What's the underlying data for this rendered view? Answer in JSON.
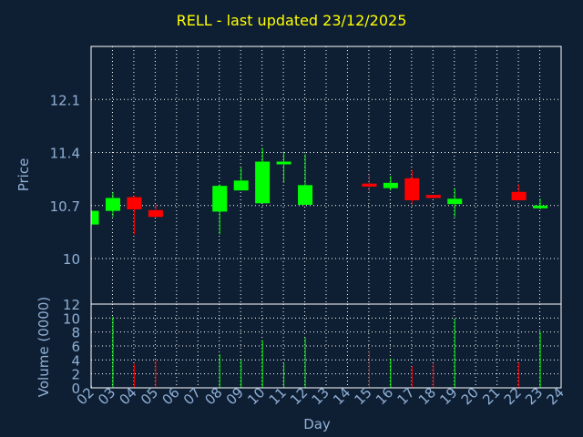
{
  "chart_data": [
    {
      "type": "candlestick",
      "title": "RELL - last updated 23/12/2025",
      "ylabel": "Price",
      "ylim": [
        9.4,
        12.8
      ],
      "yticks": [
        10,
        10.7,
        11.4,
        12.1
      ],
      "ytick_labels": [
        "10",
        "10.7",
        "11.4",
        "12.1"
      ],
      "grid": true,
      "x_range": [
        2,
        24
      ],
      "candles": [
        {
          "day": 2,
          "open": 10.45,
          "close": 10.63,
          "high": 10.63,
          "low": 10.45
        },
        {
          "day": 3,
          "open": 10.63,
          "close": 10.8,
          "high": 10.88,
          "low": 10.55
        },
        {
          "day": 4,
          "open": 10.81,
          "close": 10.65,
          "high": 10.83,
          "low": 10.32
        },
        {
          "day": 5,
          "open": 10.64,
          "close": 10.55,
          "high": 10.72,
          "low": 10.55
        },
        {
          "day": 8,
          "open": 10.62,
          "close": 10.96,
          "high": 10.98,
          "low": 10.32
        },
        {
          "day": 9,
          "open": 10.9,
          "close": 11.03,
          "high": 11.2,
          "low": 10.9
        },
        {
          "day": 10,
          "open": 10.73,
          "close": 11.28,
          "high": 11.46,
          "low": 10.73
        },
        {
          "day": 11,
          "open": 11.26,
          "close": 11.28,
          "high": 11.41,
          "low": 11.0
        },
        {
          "day": 12,
          "open": 10.71,
          "close": 10.97,
          "high": 11.38,
          "low": 10.71
        },
        {
          "day": 15,
          "open": 10.99,
          "close": 10.95,
          "high": 11.11,
          "low": 10.88
        },
        {
          "day": 16,
          "open": 10.93,
          "close": 11.0,
          "high": 11.09,
          "low": 10.9
        },
        {
          "day": 17,
          "open": 11.06,
          "close": 10.77,
          "high": 11.17,
          "low": 10.72
        },
        {
          "day": 18,
          "open": 10.84,
          "close": 10.8,
          "high": 10.84,
          "low": 10.8
        },
        {
          "day": 19,
          "open": 10.72,
          "close": 10.79,
          "high": 10.93,
          "low": 10.55
        },
        {
          "day": 22,
          "open": 10.88,
          "close": 10.77,
          "high": 10.98,
          "low": 10.77
        },
        {
          "day": 23,
          "open": 10.67,
          "close": 10.7,
          "high": 10.79,
          "low": 10.65
        }
      ]
    },
    {
      "type": "bar",
      "ylabel": "Volume (0000)",
      "xlabel": "Day",
      "ylim": [
        0,
        12
      ],
      "yticks": [
        0,
        2,
        4,
        6,
        8,
        10,
        12
      ],
      "ytick_labels": [
        "0",
        "2",
        "4",
        "6",
        "8",
        "10",
        "12"
      ],
      "x_range": [
        2,
        24
      ],
      "xticks": [
        2,
        3,
        4,
        5,
        6,
        7,
        8,
        9,
        10,
        11,
        12,
        13,
        14,
        15,
        16,
        17,
        18,
        19,
        20,
        21,
        22,
        23,
        24
      ],
      "xtick_labels": [
        "02",
        "03",
        "04",
        "05",
        "06",
        "07",
        "08",
        "09",
        "10",
        "11",
        "12",
        "13",
        "14",
        "15",
        "16",
        "17",
        "18",
        "19",
        "20",
        "21",
        "22",
        "23",
        "24"
      ],
      "bars": [
        {
          "day": 2,
          "value": 0.3,
          "color": "#00ff00"
        },
        {
          "day": 3,
          "value": 10.2,
          "color": "#00ff00"
        },
        {
          "day": 4,
          "value": 3.4,
          "color": "#ff0000"
        },
        {
          "day": 5,
          "value": 4.0,
          "color": "#ff0000"
        },
        {
          "day": 8,
          "value": 4.8,
          "color": "#00ff00"
        },
        {
          "day": 9,
          "value": 4.0,
          "color": "#00ff00"
        },
        {
          "day": 10,
          "value": 6.8,
          "color": "#00ff00"
        },
        {
          "day": 11,
          "value": 3.6,
          "color": "#00ff00"
        },
        {
          "day": 12,
          "value": 7.2,
          "color": "#00ff00"
        },
        {
          "day": 15,
          "value": 5.3,
          "color": "#ff0000"
        },
        {
          "day": 16,
          "value": 4.2,
          "color": "#00ff00"
        },
        {
          "day": 17,
          "value": 3.1,
          "color": "#ff0000"
        },
        {
          "day": 18,
          "value": 3.5,
          "color": "#ff0000"
        },
        {
          "day": 19,
          "value": 9.9,
          "color": "#00ff00"
        },
        {
          "day": 22,
          "value": 3.6,
          "color": "#ff0000"
        },
        {
          "day": 23,
          "value": 8.0,
          "color": "#00ff00"
        }
      ]
    }
  ],
  "colors": {
    "background": "#0f1f33",
    "up": "#00ff00",
    "down": "#ff0000",
    "grid": "#ffffff",
    "axis_text": "#8fb0d6",
    "title": "#ffff00"
  }
}
